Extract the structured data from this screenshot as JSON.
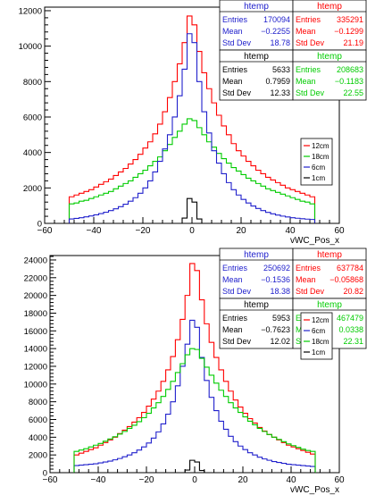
{
  "chart_data": [
    {
      "type": "step-histogram",
      "xlabel": "vWC_Pos_x",
      "ylabel": "",
      "xlim": [
        -60,
        60
      ],
      "ylim": [
        0,
        12200
      ],
      "x_ticks": [
        -60,
        -40,
        -20,
        0,
        20,
        40,
        60
      ],
      "y_ticks": [
        0,
        2000,
        4000,
        6000,
        8000,
        10000,
        12000
      ],
      "grid": false,
      "bin_edges": [
        -50,
        -48,
        -46,
        -44,
        -42,
        -40,
        -38,
        -36,
        -34,
        -32,
        -30,
        -28,
        -26,
        -24,
        -22,
        -20,
        -18,
        -16,
        -14,
        -12,
        -10,
        -8,
        -6,
        -4,
        -2,
        0,
        2,
        4,
        6,
        8,
        10,
        12,
        14,
        16,
        18,
        20,
        22,
        24,
        26,
        28,
        30,
        32,
        34,
        36,
        38,
        40,
        42,
        44,
        46,
        48,
        50
      ],
      "series": [
        {
          "name": "12cm",
          "color": "#ff0000",
          "values": [
            1500,
            1600,
            1700,
            1800,
            1900,
            2050,
            2200,
            2350,
            2500,
            2700,
            2900,
            3100,
            3350,
            3600,
            3900,
            4250,
            4600,
            5050,
            5600,
            6300,
            7100,
            8000,
            9000,
            10200,
            11700,
            11200,
            9700,
            8500,
            7600,
            6800,
            6100,
            5500,
            5000,
            4500,
            4100,
            3800,
            3500,
            3250,
            3000,
            2800,
            2600,
            2450,
            2300,
            2150,
            2000,
            1900,
            1800,
            1700,
            1600,
            1500
          ]
        },
        {
          "name": "18cm",
          "color": "#00cc00",
          "values": [
            1100,
            1150,
            1250,
            1300,
            1400,
            1500,
            1600,
            1700,
            1800,
            1950,
            2100,
            2250,
            2400,
            2600,
            2800,
            3000,
            3250,
            3500,
            3750,
            4100,
            4450,
            4850,
            5200,
            5600,
            5900,
            5800,
            5400,
            5000,
            4600,
            4300,
            3950,
            3650,
            3400,
            3150,
            2950,
            2750,
            2550,
            2400,
            2250,
            2100,
            1950,
            1850,
            1750,
            1650,
            1550,
            1450,
            1350,
            1250,
            1200,
            1100
          ]
        },
        {
          "name": "6cm",
          "color": "#2020cc",
          "values": [
            250,
            280,
            320,
            370,
            420,
            480,
            550,
            630,
            720,
            820,
            940,
            1080,
            1250,
            1450,
            1700,
            2000,
            2400,
            2900,
            3500,
            4200,
            5000,
            6000,
            7200,
            8700,
            10700,
            10200,
            8000,
            6300,
            5100,
            4100,
            3400,
            2800,
            2300,
            1900,
            1600,
            1350,
            1150,
            980,
            840,
            720,
            620,
            540,
            470,
            410,
            360,
            320,
            290,
            260,
            240,
            220
          ]
        },
        {
          "name": "1cm",
          "color": "#000000",
          "values": [
            0,
            0,
            0,
            0,
            0,
            0,
            0,
            0,
            0,
            0,
            0,
            0,
            0,
            0,
            0,
            0,
            0,
            0,
            0,
            0,
            0,
            0,
            0,
            300,
            1400,
            1200,
            250,
            0,
            0,
            0,
            0,
            0,
            0,
            0,
            0,
            0,
            0,
            0,
            0,
            0,
            0,
            0,
            0,
            0,
            0,
            0,
            0,
            0,
            0,
            0
          ]
        }
      ],
      "legend": {
        "placement": "right",
        "entries": [
          {
            "label": "12cm",
            "color": "#ff0000"
          },
          {
            "label": "18cm",
            "color": "#00cc00"
          },
          {
            "label": "6cm",
            "color": "#2020cc"
          },
          {
            "label": "1cm",
            "color": "#000000"
          }
        ]
      },
      "stat_boxes": [
        {
          "title": "htemp",
          "color": "#2020cc",
          "entries": "170094",
          "mean": "−0.2255",
          "std_dev": "18.78"
        },
        {
          "title": "htemp",
          "color": "#ff0000",
          "entries": "335291",
          "mean": "−0.1299",
          "std_dev": "21.19"
        },
        {
          "title": "htemp",
          "color": "#000000",
          "entries": "5633",
          "mean": "0.7959",
          "std_dev": "12.33"
        },
        {
          "title": "htemp",
          "color": "#00cc00",
          "entries": "208683",
          "mean": "−0.1183",
          "std_dev": "22.55"
        }
      ]
    },
    {
      "type": "step-histogram",
      "xlabel": "vWC_Pos_x",
      "ylabel": "",
      "xlim": [
        -60,
        60
      ],
      "ylim": [
        0,
        24500
      ],
      "x_ticks": [
        -60,
        -40,
        -20,
        0,
        20,
        40,
        60
      ],
      "y_ticks": [
        0,
        2000,
        4000,
        6000,
        8000,
        10000,
        12000,
        14000,
        16000,
        18000,
        20000,
        22000,
        24000
      ],
      "grid": false,
      "bin_edges": [
        -50,
        -48,
        -46,
        -44,
        -42,
        -40,
        -38,
        -36,
        -34,
        -32,
        -30,
        -28,
        -26,
        -24,
        -22,
        -20,
        -18,
        -16,
        -14,
        -12,
        -10,
        -8,
        -6,
        -4,
        -2,
        0,
        2,
        4,
        6,
        8,
        10,
        12,
        14,
        16,
        18,
        20,
        22,
        24,
        26,
        28,
        30,
        32,
        34,
        36,
        38,
        40,
        42,
        44,
        46,
        48,
        50
      ],
      "series": [
        {
          "name": "12cm",
          "color": "#ff0000",
          "values": [
            2000,
            2200,
            2400,
            2600,
            2800,
            3100,
            3400,
            3700,
            4000,
            4400,
            4800,
            5200,
            5700,
            6200,
            6800,
            7500,
            8300,
            9200,
            10300,
            11600,
            13100,
            15000,
            17300,
            20000,
            23600,
            22800,
            19500,
            16800,
            14700,
            13000,
            11600,
            10300,
            9200,
            8200,
            7400,
            6700,
            6100,
            5600,
            5100,
            4700,
            4300,
            4000,
            3700,
            3400,
            3100,
            2900,
            2700,
            2500,
            2300,
            2100
          ]
        },
        {
          "name": "6cm",
          "color": "#2020cc",
          "values": [
            800,
            850,
            900,
            950,
            1000,
            1100,
            1200,
            1300,
            1450,
            1600,
            1800,
            2000,
            2250,
            2550,
            2900,
            3350,
            3900,
            4600,
            5500,
            6600,
            8000,
            9800,
            12000,
            14500,
            17200,
            16400,
            13000,
            10400,
            8500,
            7000,
            5800,
            4900,
            4100,
            3500,
            3000,
            2600,
            2250,
            2000,
            1750,
            1550,
            1400,
            1250,
            1150,
            1050,
            950,
            900,
            850,
            800,
            750,
            700
          ]
        },
        {
          "name": "18cm",
          "color": "#00cc00",
          "values": [
            2400,
            2550,
            2700,
            2900,
            3100,
            3300,
            3550,
            3800,
            4050,
            4350,
            4650,
            5000,
            5350,
            5750,
            6200,
            6700,
            7300,
            7900,
            8600,
            9400,
            10300,
            11300,
            12300,
            13300,
            14000,
            13900,
            12900,
            11900,
            11000,
            10100,
            9300,
            8600,
            7900,
            7300,
            6800,
            6300,
            5800,
            5400,
            5000,
            4650,
            4300,
            4000,
            3750,
            3500,
            3250,
            3050,
            2850,
            2650,
            2500,
            2400
          ]
        },
        {
          "name": "1cm",
          "color": "#000000",
          "values": [
            0,
            0,
            0,
            0,
            0,
            0,
            0,
            0,
            0,
            0,
            0,
            0,
            0,
            0,
            0,
            0,
            0,
            0,
            0,
            0,
            0,
            0,
            0,
            300,
            1400,
            1200,
            250,
            0,
            0,
            0,
            0,
            0,
            0,
            0,
            0,
            0,
            0,
            0,
            0,
            0,
            0,
            0,
            0,
            0,
            0,
            0,
            0,
            0,
            0,
            0
          ]
        }
      ],
      "legend": {
        "placement": "right",
        "entries": [
          {
            "label": "12cm",
            "color": "#ff0000"
          },
          {
            "label": "6cm",
            "color": "#2020cc"
          },
          {
            "label": "18cm",
            "color": "#00cc00"
          },
          {
            "label": "1cm",
            "color": "#000000"
          }
        ]
      },
      "stat_boxes": [
        {
          "title": "htemp",
          "color": "#2020cc",
          "entries": "250692",
          "mean": "−0.1536",
          "std_dev": "18.38"
        },
        {
          "title": "htemp",
          "color": "#ff0000",
          "entries": "637784",
          "mean": "−0.05868",
          "std_dev": "20.82"
        },
        {
          "title": "htemp",
          "color": "#000000",
          "entries": "5953",
          "mean": "−0.7623",
          "std_dev": "12.02"
        },
        {
          "title": "htemp",
          "color": "#00cc00",
          "entries": "467479",
          "mean": "0.0338",
          "std_dev": "22.31"
        }
      ]
    }
  ],
  "stat_labels": {
    "entries": "Entries",
    "mean": "Mean",
    "std_dev": "Std Dev"
  }
}
